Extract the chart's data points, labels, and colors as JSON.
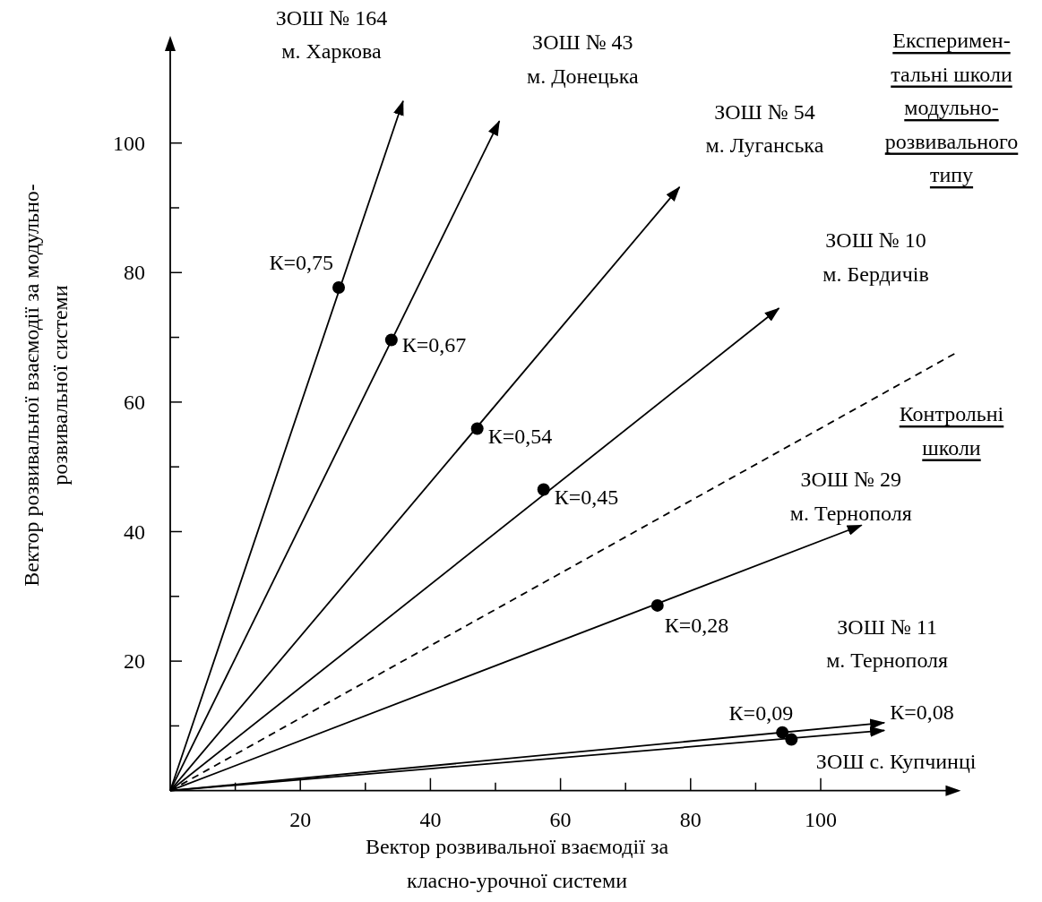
{
  "chart_data": {
    "type": "line",
    "xlabel": "Вектор розвивальної взаємодії за\nкласно-урочної системи",
    "ylabel": "Вектор розвивальної взаємодії  за модульно-\nрозвивальної системи",
    "xlim": [
      0,
      121
    ],
    "ylim": [
      0,
      116
    ],
    "xticks": [
      {
        "value": 10,
        "label": null
      },
      20,
      {
        "value": 30,
        "label": null
      },
      40,
      {
        "value": 50,
        "label": null
      },
      60,
      {
        "value": 70,
        "label": null
      },
      80,
      {
        "value": 90,
        "label": null
      },
      100
    ],
    "yticks": [
      {
        "value": 10,
        "label": null
      },
      20,
      {
        "value": 30,
        "label": null
      },
      40,
      {
        "value": 50,
        "label": null
      },
      60,
      {
        "value": 70,
        "label": null
      },
      80,
      {
        "value": 90,
        "label": null
      },
      100
    ],
    "series": [
      {
        "name": "ЗОШ № 164\nм. Харкова",
        "color": "#000000",
        "x": [
          0,
          35.8
        ],
        "values": [
          0,
          106.5
        ]
      },
      {
        "name": "ЗОШ № 43\nм. Донецька",
        "color": "#000000",
        "x": [
          0,
          50.6
        ],
        "values": [
          0,
          103.4
        ]
      },
      {
        "name": "ЗОШ № 54\nм. Луганська",
        "color": "#000000",
        "x": [
          0,
          78.3
        ],
        "values": [
          0,
          93.2
        ]
      },
      {
        "name": "ЗОШ № 10\nм. Бердичів",
        "color": "#000000",
        "x": [
          0,
          93.6
        ],
        "values": [
          0,
          74.5
        ]
      },
      {
        "name": "ЗОШ № 29\nм. Тернополя",
        "color": "#000000",
        "x": [
          0,
          106.3
        ],
        "values": [
          0,
          41.0
        ]
      },
      {
        "name": "ЗОШ № 11\nм. Тернополя",
        "color": "#000000",
        "x": [
          0,
          109.8
        ],
        "values": [
          0,
          10.5
        ]
      },
      {
        "name": "ЗОШ с. Купчинці",
        "color": "#000000",
        "x": [
          0,
          109.8
        ],
        "values": [
          0,
          9.3
        ]
      },
      {
        "color": "#000000",
        "line_style": "dashed",
        "x": [
          0,
          120.8
        ],
        "values": [
          0,
          67.6
        ]
      },
      {
        "type": "scatter",
        "color": "#000000",
        "marker": "circle",
        "x": [
          25.9,
          34.0,
          47.2,
          57.4,
          74.9,
          94.1,
          95.5
        ],
        "values": [
          77.7,
          69.6,
          55.9,
          46.5,
          28.6,
          9.0,
          7.9
        ]
      }
    ],
    "annotations": [
      "Експеримен-\nтальні школи\nмодульно-\nрозвивального\nтипу",
      "Контрольні\nшколи",
      {
        "text": "К=0,75",
        "x": 25.9,
        "y": 77.7
      },
      {
        "text": "К=0,67",
        "x": 34.0,
        "y": 69.6
      },
      {
        "text": "К=0,54",
        "x": 47.2,
        "y": 55.9
      },
      {
        "text": "К=0,45",
        "x": 57.4,
        "y": 46.5
      },
      {
        "text": "К=0,28",
        "x": 74.9,
        "y": 28.6
      },
      {
        "text": "К=0,09",
        "x": 94.1,
        "y": 9.0
      },
      "К=0,08"
    ]
  }
}
